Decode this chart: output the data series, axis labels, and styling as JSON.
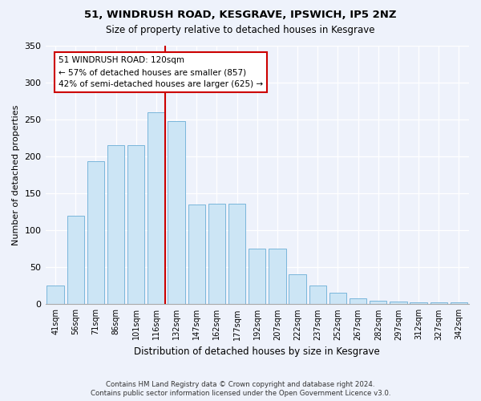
{
  "title1": "51, WINDRUSH ROAD, KESGRAVE, IPSWICH, IP5 2NZ",
  "title2": "Size of property relative to detached houses in Kesgrave",
  "xlabel": "Distribution of detached houses by size in Kesgrave",
  "ylabel": "Number of detached properties",
  "categories": [
    "41sqm",
    "56sqm",
    "71sqm",
    "86sqm",
    "101sqm",
    "116sqm",
    "132sqm",
    "147sqm",
    "162sqm",
    "177sqm",
    "192sqm",
    "207sqm",
    "222sqm",
    "237sqm",
    "252sqm",
    "267sqm",
    "282sqm",
    "297sqm",
    "312sqm",
    "327sqm",
    "342sqm"
  ],
  "values": [
    25,
    120,
    193,
    215,
    215,
    260,
    248,
    135,
    136,
    136,
    75,
    75,
    40,
    25,
    15,
    8,
    5,
    4,
    3,
    2,
    2
  ],
  "bar_color": "#cce5f5",
  "bar_edge_color": "#6aaed6",
  "annotation_text": "51 WINDRUSH ROAD: 120sqm\n← 57% of detached houses are smaller (857)\n42% of semi-detached houses are larger (625) →",
  "annotation_box_color": "white",
  "annotation_box_edge": "#cc0000",
  "vline_color": "#cc0000",
  "footer1": "Contains HM Land Registry data © Crown copyright and database right 2024.",
  "footer2": "Contains public sector information licensed under the Open Government Licence v3.0.",
  "ylim": [
    0,
    350
  ],
  "yticks": [
    0,
    50,
    100,
    150,
    200,
    250,
    300,
    350
  ],
  "background_color": "#eef2fb",
  "plot_bg_color": "#eef2fb"
}
